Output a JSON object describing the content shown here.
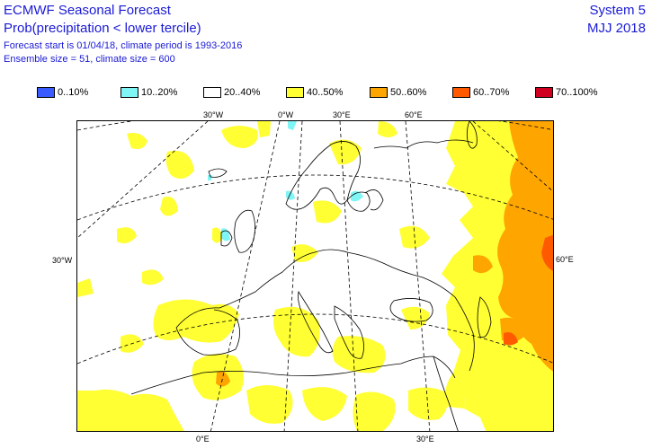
{
  "header": {
    "title": "ECMWF Seasonal Forecast",
    "subtitle": "Prob(precipitation < lower tercile)",
    "info_line1": "Forecast start is 01/04/18, climate period is 1993-2016",
    "info_line2": "Ensemble size = 51, climate size = 600",
    "system": "System 5",
    "season": "MJJ 2018"
  },
  "legend": {
    "items": [
      {
        "label": "0..10%",
        "color": "#3a5cff"
      },
      {
        "label": "10..20%",
        "color": "#7ff5f5"
      },
      {
        "label": "20..40%",
        "color": "#ffffff"
      },
      {
        "label": "40..50%",
        "color": "#ffff33"
      },
      {
        "label": "50..60%",
        "color": "#ffa500"
      },
      {
        "label": "60..70%",
        "color": "#ff5a00"
      },
      {
        "label": "70..100%",
        "color": "#d00020"
      }
    ]
  },
  "map": {
    "projection": "polar stereographic",
    "grid_labels": {
      "top": [
        "30°W",
        "0°W",
        "30°E",
        "60°E"
      ],
      "left": "30°W",
      "right": "60°E",
      "bottom": [
        "0°E",
        "30°E"
      ]
    },
    "colors": {
      "coast": "#000000",
      "grid": "#000000",
      "yellow": "#ffff33",
      "orange": "#ffa500",
      "red_orange": "#ff5a00",
      "cyan": "#7ff5f5"
    }
  }
}
